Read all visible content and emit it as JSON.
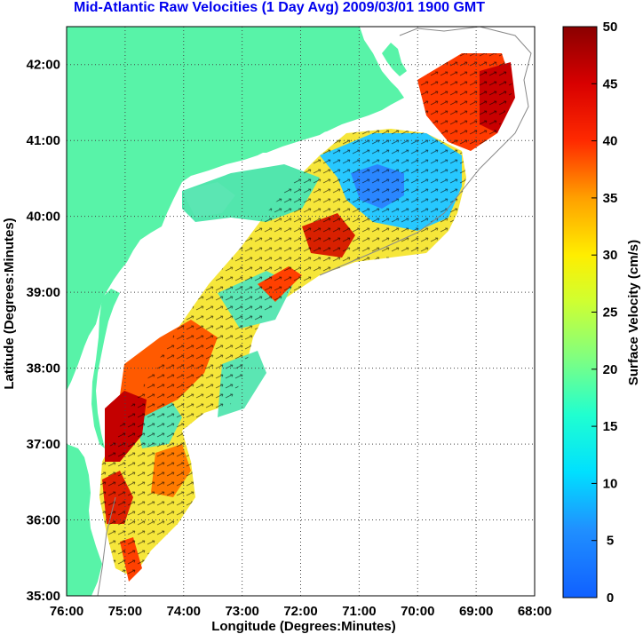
{
  "title": "Mid-Atlantic Raw Velocities (1 Day Avg) 2009/03/01 1900 GMT",
  "x_axis": {
    "label": "Longitude (Degrees:Minutes)",
    "ticks": [
      "76:00",
      "75:00",
      "74:00",
      "73:00",
      "72:00",
      "71:00",
      "70:00",
      "69:00",
      "68:00"
    ]
  },
  "y_axis": {
    "label": "Latitude (Degrees:Minutes)",
    "ticks": [
      "35:00",
      "36:00",
      "37:00",
      "38:00",
      "39:00",
      "40:00",
      "41:00",
      "42:00"
    ]
  },
  "colorbar": {
    "label": "Surface Velocity (cm/s)",
    "ticks": [
      "0",
      "5",
      "10",
      "15",
      "20",
      "25",
      "30",
      "35",
      "40",
      "45",
      "50"
    ],
    "range": [
      0,
      50
    ]
  },
  "colors": {
    "land": "#58f3a8",
    "ocean": "#ffffff",
    "title": "#0000ee",
    "grid": "#444444"
  },
  "map_extent": {
    "lon": [
      -76,
      -68
    ],
    "lat": [
      35,
      42.5
    ]
  }
}
